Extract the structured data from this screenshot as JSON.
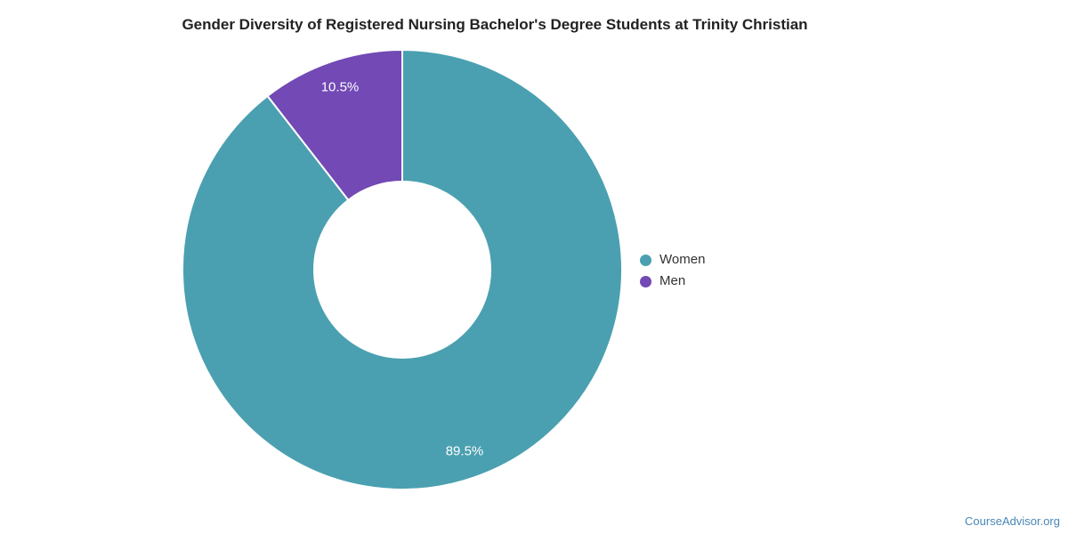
{
  "chart_data": {
    "type": "pie",
    "subtype": "donut",
    "title": "Gender Diversity of Registered Nursing Bachelor's Degree Students at Trinity Christian",
    "slices": [
      {
        "label": "Women",
        "value": 89.5,
        "display": "89.5%",
        "color": "#4AA0B0"
      },
      {
        "label": "Men",
        "value": 10.5,
        "display": "10.5%",
        "color": "#7249B5"
      }
    ],
    "donut_hole_ratio": 0.4,
    "start_angle": "top",
    "direction": "clockwise",
    "legend_position": "right",
    "data_label_color": "#ffffff",
    "slice_border_color": "#ffffff"
  },
  "watermark": {
    "text": "CourseAdvisor.org",
    "color": "#4A87B5"
  }
}
